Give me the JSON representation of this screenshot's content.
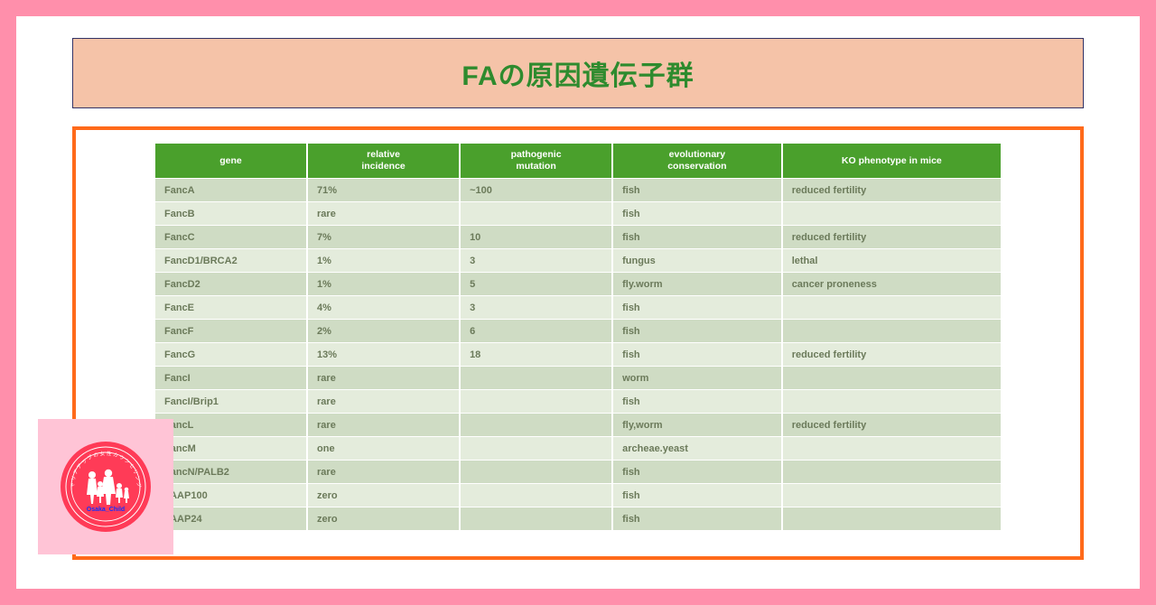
{
  "title": "FAの原因遺伝子群",
  "logo": {
    "label": "Osaka_Child"
  },
  "table": {
    "columns": [
      "gene",
      "relative\nincidence",
      "pathogenic\nmutation",
      "evolutionary\nconservation",
      "KO phenotype in mice"
    ],
    "col_widths_pct": [
      18,
      18,
      18,
      20,
      26
    ],
    "header_bg": "#4aa02c",
    "header_fg": "#ffffff",
    "row_bg_odd": "#cfdcc4",
    "row_bg_even": "#e4ecdc",
    "text_color": "#6b7a5a",
    "font_size_pt": 8,
    "rows": [
      [
        "FancA",
        "71%",
        "~100",
        "fish",
        "reduced fertility"
      ],
      [
        "FancB",
        "rare",
        "",
        "fish",
        ""
      ],
      [
        "FancC",
        "7%",
        "10",
        "fish",
        "reduced fertility"
      ],
      [
        "FancD1/BRCA2",
        "1%",
        "3",
        "fungus",
        "lethal"
      ],
      [
        "FancD2",
        "1%",
        "5",
        "fly.worm",
        "cancer proneness"
      ],
      [
        "FancE",
        "4%",
        "3",
        "fish",
        ""
      ],
      [
        "FancF",
        "2%",
        "6",
        "fish",
        ""
      ],
      [
        "FancG",
        "13%",
        "18",
        "fish",
        "reduced fertility"
      ],
      [
        "FancI",
        "rare",
        "",
        "worm",
        ""
      ],
      [
        "FancI/Brip1",
        "rare",
        "",
        "fish",
        ""
      ],
      [
        "FancL",
        "rare",
        "",
        "fly,worm",
        "reduced fertility"
      ],
      [
        "FancM",
        "one",
        "",
        "archeae.yeast",
        ""
      ],
      [
        "FancN/PALB2",
        "rare",
        "",
        "fish",
        ""
      ],
      [
        "FAAP100",
        "zero",
        "",
        "fish",
        ""
      ],
      [
        "FAAP24",
        "zero",
        "",
        "fish",
        ""
      ]
    ]
  },
  "colors": {
    "page_bg": "#ff8fab",
    "card_bg": "#ffffff",
    "title_bg": "#f5c3a8",
    "title_border": "#333366",
    "title_fg": "#2e8b2e",
    "frame_border": "#ff6a1a",
    "logo_bg": "#ffc4d6",
    "logo_circle": "#ff3b57",
    "logo_ring": "#ffffff"
  }
}
